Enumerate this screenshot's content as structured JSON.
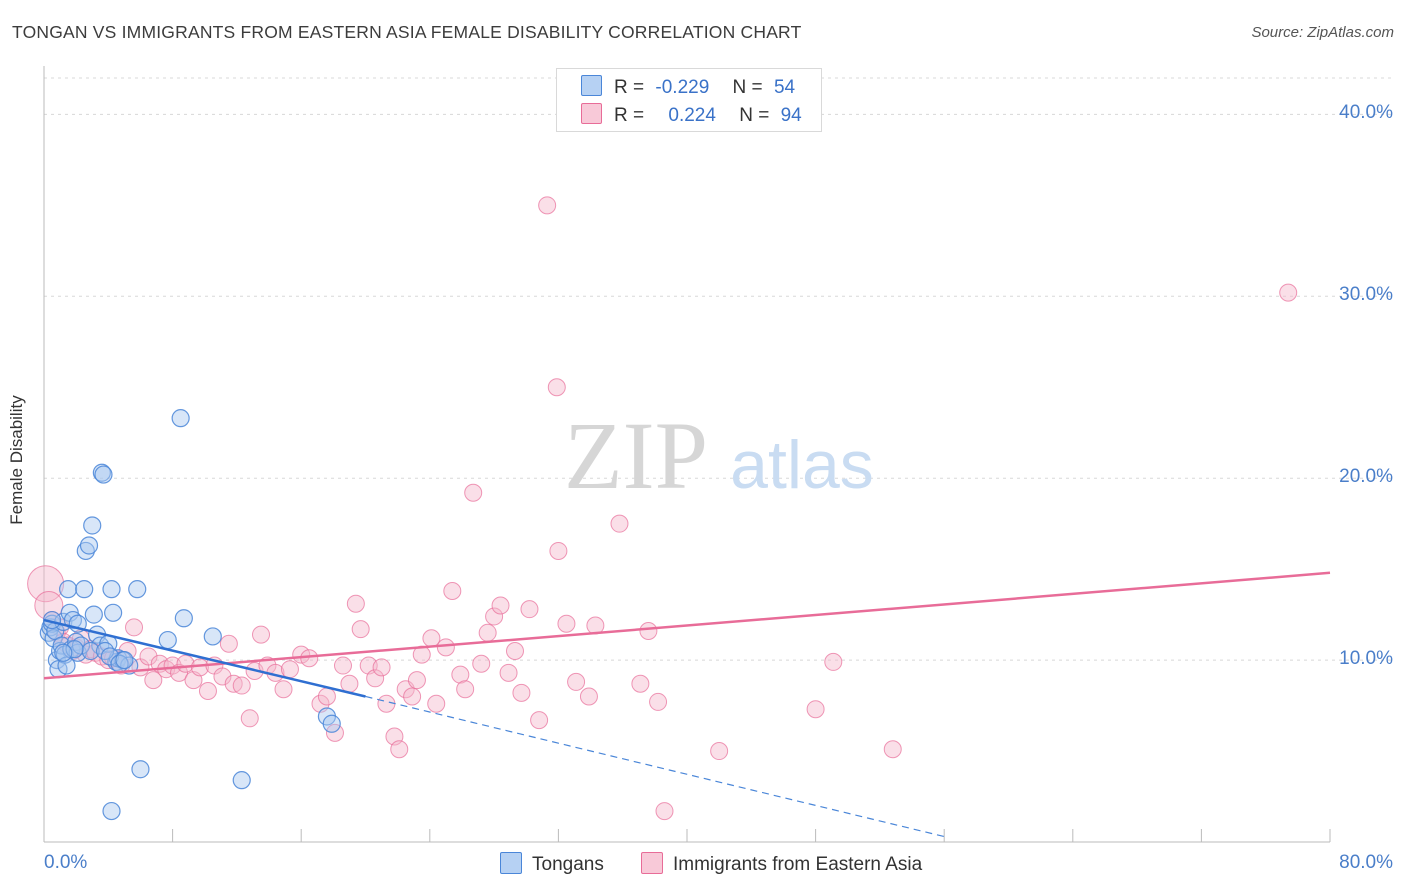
{
  "title": "TONGAN VS IMMIGRANTS FROM EASTERN ASIA FEMALE DISABILITY CORRELATION CHART",
  "source": "Source: ZipAtlas.com",
  "watermark": {
    "zip": "ZIP",
    "atlas": "atlas"
  },
  "colors": {
    "blue": "#4a86d8",
    "blue_fill": "#a9c8f0",
    "pink": "#e86c98",
    "pink_fill": "#f5b9cc",
    "axis_text": "#4a7ec9",
    "grid": "#d8d8d8"
  },
  "legend_top": {
    "rows": [
      {
        "r_label": "R =",
        "r_value": "-0.229",
        "n_label": "N =",
        "n_value": "54"
      },
      {
        "r_label": "R =",
        "r_value": "0.224",
        "n_label": "N =",
        "n_value": "94"
      }
    ]
  },
  "chart_data": {
    "type": "scatter",
    "title": "TONGAN VS IMMIGRANTS FROM EASTERN ASIA FEMALE DISABILITY CORRELATION CHART",
    "xlabel": "",
    "ylabel": "Female Disability",
    "xlim": [
      0,
      80
    ],
    "ylim": [
      0,
      42
    ],
    "x_tick_labels": {
      "min": "0.0%",
      "max": "80.0%"
    },
    "y_ticks": [
      10,
      20,
      30,
      40
    ],
    "y_tick_labels": [
      "10.0%",
      "20.0%",
      "30.0%",
      "40.0%"
    ],
    "grid": true,
    "legend_position": "bottom",
    "series": [
      {
        "name": "Tongans",
        "r": -0.229,
        "n": 54,
        "trend": {
          "x0": 0,
          "y0": 12.2,
          "x1": 20,
          "y1": 8.0,
          "dash_x1": 56,
          "dash_y1": 0.3
        },
        "points": [
          [
            0.3,
            11.5
          ],
          [
            0.4,
            11.8
          ],
          [
            0.5,
            12.0
          ],
          [
            0.6,
            11.2
          ],
          [
            0.7,
            11.6
          ],
          [
            0.8,
            10.0
          ],
          [
            0.9,
            9.5
          ],
          [
            1.0,
            10.5
          ],
          [
            1.1,
            10.8
          ],
          [
            1.2,
            12.1
          ],
          [
            1.3,
            10.3
          ],
          [
            1.4,
            9.7
          ],
          [
            1.5,
            13.9
          ],
          [
            1.6,
            12.6
          ],
          [
            1.7,
            10.6
          ],
          [
            1.8,
            12.2
          ],
          [
            2.0,
            11.0
          ],
          [
            2.1,
            10.4
          ],
          [
            2.3,
            10.8
          ],
          [
            2.5,
            13.9
          ],
          [
            2.6,
            16.0
          ],
          [
            2.8,
            16.3
          ],
          [
            3.0,
            17.4
          ],
          [
            3.1,
            12.5
          ],
          [
            3.3,
            11.4
          ],
          [
            3.5,
            10.8
          ],
          [
            3.6,
            20.3
          ],
          [
            3.7,
            20.2
          ],
          [
            4.0,
            10.9
          ],
          [
            4.2,
            13.9
          ],
          [
            4.3,
            12.6
          ],
          [
            4.5,
            9.9
          ],
          [
            4.6,
            10.1
          ],
          [
            4.9,
            10.0
          ],
          [
            5.3,
            9.7
          ],
          [
            5.8,
            13.9
          ],
          [
            7.7,
            11.1
          ],
          [
            8.5,
            23.3
          ],
          [
            8.7,
            12.3
          ],
          [
            10.5,
            11.3
          ],
          [
            17.6,
            6.9
          ],
          [
            17.9,
            6.5
          ],
          [
            2.1,
            12.0
          ],
          [
            2.9,
            10.5
          ],
          [
            1.9,
            10.6
          ],
          [
            0.5,
            12.2
          ],
          [
            3.8,
            10.5
          ],
          [
            4.1,
            10.2
          ],
          [
            4.7,
            9.8
          ],
          [
            5.0,
            10.0
          ],
          [
            1.2,
            10.4
          ],
          [
            4.2,
            1.7
          ],
          [
            6.0,
            4.0
          ],
          [
            12.3,
            3.4
          ]
        ]
      },
      {
        "name": "Immigrants from Eastern Asia",
        "r": 0.224,
        "n": 94,
        "trend": {
          "x0": 0,
          "y0": 9.0,
          "x1": 80,
          "y1": 14.8
        },
        "points": [
          [
            0.1,
            14.2
          ],
          [
            0.3,
            13.0
          ],
          [
            0.5,
            12.2
          ],
          [
            0.8,
            11.5
          ],
          [
            1.0,
            11.8
          ],
          [
            1.2,
            11.0
          ],
          [
            1.5,
            10.8
          ],
          [
            1.8,
            10.5
          ],
          [
            2.0,
            10.7
          ],
          [
            2.3,
            11.2
          ],
          [
            2.6,
            10.3
          ],
          [
            2.9,
            10.6
          ],
          [
            3.2,
            10.4
          ],
          [
            3.6,
            10.2
          ],
          [
            4.0,
            10.0
          ],
          [
            4.3,
            10.1
          ],
          [
            4.8,
            9.7
          ],
          [
            5.2,
            10.5
          ],
          [
            5.6,
            11.8
          ],
          [
            6.0,
            9.6
          ],
          [
            6.5,
            10.2
          ],
          [
            6.8,
            8.9
          ],
          [
            7.2,
            9.8
          ],
          [
            7.6,
            9.5
          ],
          [
            8.0,
            9.7
          ],
          [
            8.4,
            9.3
          ],
          [
            8.8,
            9.8
          ],
          [
            9.3,
            8.9
          ],
          [
            9.7,
            9.6
          ],
          [
            10.2,
            8.3
          ],
          [
            10.6,
            9.7
          ],
          [
            11.1,
            9.1
          ],
          [
            11.5,
            10.9
          ],
          [
            11.8,
            8.7
          ],
          [
            12.3,
            8.6
          ],
          [
            12.8,
            6.8
          ],
          [
            13.1,
            9.4
          ],
          [
            13.5,
            11.4
          ],
          [
            13.9,
            9.7
          ],
          [
            14.4,
            9.3
          ],
          [
            14.9,
            8.4
          ],
          [
            15.3,
            9.5
          ],
          [
            16.0,
            10.3
          ],
          [
            16.5,
            10.1
          ],
          [
            17.2,
            7.6
          ],
          [
            17.6,
            8.0
          ],
          [
            18.1,
            6.0
          ],
          [
            18.6,
            9.7
          ],
          [
            19.0,
            8.7
          ],
          [
            19.4,
            13.1
          ],
          [
            19.7,
            11.7
          ],
          [
            20.2,
            9.7
          ],
          [
            20.6,
            9.0
          ],
          [
            21.0,
            9.6
          ],
          [
            21.3,
            7.6
          ],
          [
            21.8,
            5.8
          ],
          [
            22.1,
            5.1
          ],
          [
            22.5,
            8.4
          ],
          [
            22.9,
            8.0
          ],
          [
            23.2,
            8.9
          ],
          [
            23.5,
            10.3
          ],
          [
            24.1,
            11.2
          ],
          [
            24.4,
            7.6
          ],
          [
            25.0,
            10.7
          ],
          [
            25.4,
            13.8
          ],
          [
            25.9,
            9.2
          ],
          [
            26.2,
            8.4
          ],
          [
            26.7,
            19.2
          ],
          [
            27.2,
            9.8
          ],
          [
            27.6,
            11.5
          ],
          [
            28.0,
            12.4
          ],
          [
            28.4,
            13.0
          ],
          [
            28.9,
            9.3
          ],
          [
            29.3,
            10.5
          ],
          [
            29.7,
            8.2
          ],
          [
            30.2,
            12.8
          ],
          [
            30.8,
            6.7
          ],
          [
            31.3,
            35.0
          ],
          [
            31.9,
            25.0
          ],
          [
            32.0,
            16.0
          ],
          [
            32.5,
            12.0
          ],
          [
            33.1,
            8.8
          ],
          [
            33.9,
            8.0
          ],
          [
            34.3,
            11.9
          ],
          [
            35.8,
            17.5
          ],
          [
            37.1,
            8.7
          ],
          [
            37.6,
            11.6
          ],
          [
            38.2,
            7.7
          ],
          [
            38.6,
            1.7
          ],
          [
            42.0,
            5.0
          ],
          [
            48.0,
            7.3
          ],
          [
            49.1,
            9.9
          ],
          [
            52.8,
            5.1
          ],
          [
            77.4,
            30.2
          ]
        ]
      }
    ]
  },
  "legend_bottom": {
    "tongans": "Tongans",
    "immigrants": "Immigrants from Eastern Asia"
  }
}
